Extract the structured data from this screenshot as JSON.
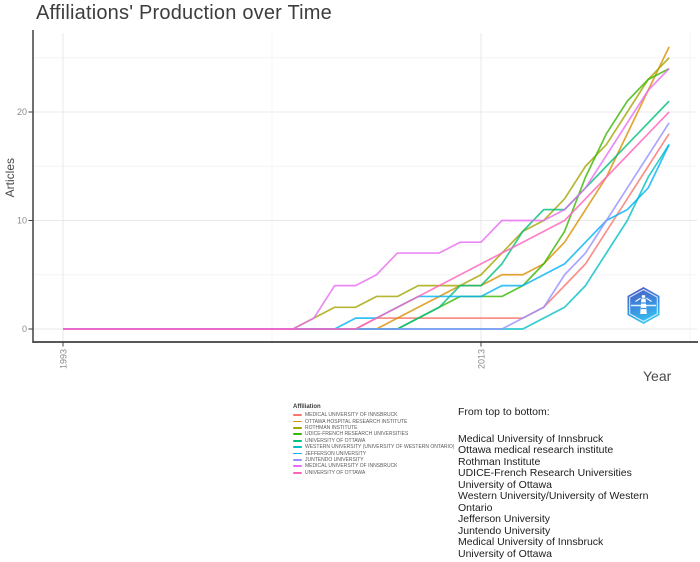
{
  "title": "Affiliations' Production over Time",
  "axes": {
    "x_label": "Year",
    "y_label": "Articles"
  },
  "legend": {
    "title": "Affiliation"
  },
  "annotation": {
    "title": "From top to bottom:",
    "lines": [
      "Medical University of Innsbruck",
      "Ottawa medical research institute",
      "Rothman Institute",
      "UDICE-French Research Universities",
      "University of Ottawa",
      "Western University/University of Western Ontario",
      "Jefferson University",
      "Juntendo University",
      "Medical University of Innsbruck",
      "University of Ottawa"
    ]
  },
  "logo_icon": "hexagon-lighthouse-badge",
  "chart_data": {
    "type": "line",
    "title": "Affiliations' Production over Time",
    "xlabel": "Year",
    "ylabel": "Articles",
    "xlim": [
      1992,
      2023
    ],
    "ylim": [
      0,
      27
    ],
    "x_tick_values": [
      1993,
      2013
    ],
    "y_tick_values": [
      0,
      10,
      20
    ],
    "minor_y_gridlines": [
      5,
      15,
      25
    ],
    "minor_x_gridlines": [
      2003,
      2023
    ],
    "grid": true,
    "legend_position": "bottom-left",
    "years": [
      1993,
      1994,
      1995,
      1996,
      1997,
      1998,
      1999,
      2000,
      2001,
      2002,
      2003,
      2004,
      2005,
      2006,
      2007,
      2008,
      2009,
      2010,
      2011,
      2012,
      2013,
      2014,
      2015,
      2016,
      2017,
      2018,
      2019,
      2020,
      2021,
      2022
    ],
    "series": [
      {
        "name": "MEDICAL UNIVERSITY OF INNSBRUCK",
        "color": "#F8766D",
        "values": [
          0,
          0,
          0,
          0,
          0,
          0,
          0,
          0,
          0,
          0,
          0,
          0,
          0,
          0,
          0,
          1,
          1,
          1,
          1,
          1,
          1,
          1,
          1,
          2,
          4,
          6,
          9,
          12,
          15,
          18
        ]
      },
      {
        "name": "OTTAWA HOSPITAL RESEARCH INSTITUTE",
        "color": "#D89000",
        "values": [
          0,
          0,
          0,
          0,
          0,
          0,
          0,
          0,
          0,
          0,
          0,
          0,
          0,
          0,
          0,
          0,
          1,
          2,
          3,
          4,
          4,
          5,
          5,
          6,
          8,
          11,
          14,
          18,
          22,
          26
        ]
      },
      {
        "name": "ROTHMAN INSTITUTE",
        "color": "#A3A500",
        "values": [
          0,
          0,
          0,
          0,
          0,
          0,
          0,
          0,
          0,
          0,
          0,
          0,
          1,
          2,
          2,
          3,
          3,
          4,
          4,
          4,
          5,
          7,
          9,
          10,
          12,
          15,
          17,
          20,
          23,
          25
        ]
      },
      {
        "name": "UDICE-FRENCH RESEARCH UNIVERSITIES",
        "color": "#39B600",
        "values": [
          0,
          0,
          0,
          0,
          0,
          0,
          0,
          0,
          0,
          0,
          0,
          0,
          0,
          0,
          0,
          0,
          0,
          1,
          2,
          3,
          3,
          3,
          4,
          6,
          9,
          14,
          18,
          21,
          23,
          24
        ]
      },
      {
        "name": "UNIVERSITY OF OTTAWA",
        "color": "#00BF7D",
        "values": [
          0,
          0,
          0,
          0,
          0,
          0,
          0,
          0,
          0,
          0,
          0,
          0,
          0,
          0,
          0,
          0,
          0,
          1,
          2,
          4,
          4,
          6,
          9,
          11,
          11,
          13,
          15,
          17,
          19,
          21
        ]
      },
      {
        "name": "WESTERN UNIVERSITY (UNIVERSITY OF WESTERN ONTARIO)",
        "color": "#00BFC4",
        "values": [
          0,
          0,
          0,
          0,
          0,
          0,
          0,
          0,
          0,
          0,
          0,
          0,
          0,
          0,
          0,
          0,
          0,
          0,
          0,
          0,
          0,
          0,
          0,
          1,
          2,
          4,
          7,
          10,
          14,
          17
        ]
      },
      {
        "name": "JEFFERSON UNIVERSITY",
        "color": "#00B0F6",
        "values": [
          0,
          0,
          0,
          0,
          0,
          0,
          0,
          0,
          0,
          0,
          0,
          0,
          0,
          0,
          1,
          1,
          2,
          3,
          3,
          3,
          3,
          4,
          4,
          5,
          6,
          8,
          10,
          11,
          13,
          17
        ]
      },
      {
        "name": "JUNTENDO UNIVERSITY",
        "color": "#9590FF",
        "values": [
          0,
          0,
          0,
          0,
          0,
          0,
          0,
          0,
          0,
          0,
          0,
          0,
          0,
          0,
          0,
          0,
          0,
          0,
          0,
          0,
          0,
          0,
          1,
          2,
          5,
          7,
          10,
          13,
          16,
          19
        ]
      },
      {
        "name": "MEDICAL UNIVERSITY OF INNSBRUCK",
        "color": "#E76BF3",
        "values": [
          0,
          0,
          0,
          0,
          0,
          0,
          0,
          0,
          0,
          0,
          0,
          0,
          1,
          4,
          4,
          5,
          7,
          7,
          7,
          8,
          8,
          10,
          10,
          10,
          11,
          13,
          16,
          19,
          22,
          24
        ]
      },
      {
        "name": "UNIVERSITY OF OTTAWA",
        "color": "#FF62BC",
        "values": [
          0,
          0,
          0,
          0,
          0,
          0,
          0,
          0,
          0,
          0,
          0,
          0,
          0,
          0,
          0,
          1,
          2,
          3,
          4,
          5,
          6,
          7,
          8,
          9,
          10,
          12,
          14,
          16,
          18,
          20
        ]
      }
    ]
  }
}
